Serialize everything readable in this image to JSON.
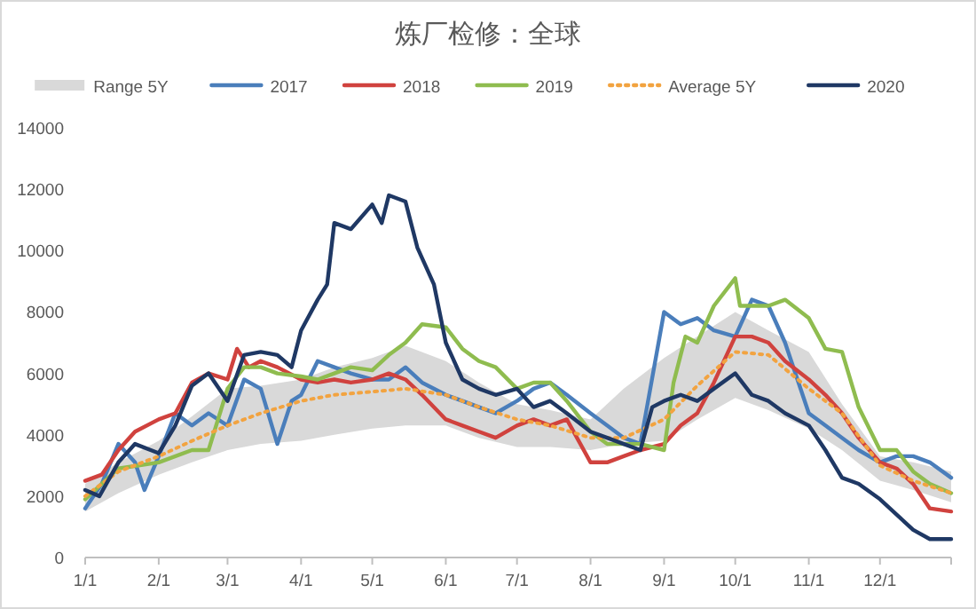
{
  "chart_data": {
    "type": "line",
    "title": "炼厂检修：全球",
    "legend": "top",
    "grid": false,
    "line_style": "solid",
    "xlim": [
      "--01-01",
      "--12-31"
    ],
    "xticks": [
      {
        "value": "--01-01",
        "label": "1/1"
      },
      {
        "value": "--02-01",
        "label": "2/1"
      },
      {
        "value": "--03-01",
        "label": "3/1"
      },
      {
        "value": "--04-01",
        "label": "4/1"
      },
      {
        "value": "--05-01",
        "label": "5/1"
      },
      {
        "value": "--06-01",
        "label": "6/1"
      },
      {
        "value": "--07-01",
        "label": "7/1"
      },
      {
        "value": "--08-01",
        "label": "8/1"
      },
      {
        "value": "--09-01",
        "label": "9/1"
      },
      {
        "value": "--10-01",
        "label": "10/1"
      },
      {
        "value": "--11-01",
        "label": "11/1"
      },
      {
        "value": "--12-01",
        "label": "12/1"
      },
      {
        "value": "--12-31",
        "label": null
      }
    ],
    "ylim": [
      0,
      14000
    ],
    "yticks": [
      0,
      2000,
      4000,
      6000,
      8000,
      10000,
      12000,
      14000
    ],
    "series": [
      {
        "name": "Range 5Y",
        "type": "area",
        "color": "#d9d9d9"
      },
      {
        "name": "2017",
        "color": "#4a7ebb",
        "x": [
          "--01-01",
          "--01-08",
          "--01-15",
          "--01-22",
          "--01-26",
          "--02-01",
          "--02-08",
          "--02-15",
          "--02-22",
          "--03-01",
          "--03-08",
          "--03-15",
          "--03-22",
          "--03-28",
          "--04-01",
          "--04-08",
          "--04-15",
          "--04-22",
          "--05-01",
          "--05-08",
          "--05-15",
          "--05-22",
          "--06-01",
          "--06-08",
          "--06-15",
          "--06-22",
          "--07-01",
          "--07-08",
          "--07-15",
          "--07-22",
          "--08-01",
          "--08-08",
          "--08-15",
          "--08-22",
          "--09-01",
          "--09-08",
          "--09-15",
          "--09-22",
          "--10-01",
          "--10-08",
          "--10-15",
          "--10-22",
          "--11-01",
          "--11-08",
          "--11-15",
          "--11-22",
          "--12-01",
          "--12-08",
          "--12-15",
          "--12-22",
          "--12-31"
        ],
        "values": [
          1600,
          2400,
          3700,
          3100,
          2200,
          3300,
          4700,
          4300,
          4700,
          4300,
          5800,
          5500,
          3700,
          5100,
          5300,
          6400,
          6200,
          6000,
          5800,
          5800,
          6200,
          5700,
          5300,
          5100,
          4900,
          4700,
          5100,
          5500,
          5700,
          5300,
          4700,
          4300,
          3900,
          3700,
          8000,
          7600,
          7800,
          7400,
          7200,
          8400,
          8200,
          7000,
          4700,
          4300,
          3900,
          3500,
          3100,
          3300,
          3300,
          3100,
          2600
        ]
      },
      {
        "name": "2018",
        "color": "#d0423e",
        "x": [
          "--01-01",
          "--01-08",
          "--01-15",
          "--01-22",
          "--02-01",
          "--02-08",
          "--02-15",
          "--02-22",
          "--03-01",
          "--03-05",
          "--03-10",
          "--03-15",
          "--03-22",
          "--04-01",
          "--04-08",
          "--04-15",
          "--04-22",
          "--05-01",
          "--05-08",
          "--05-15",
          "--05-22",
          "--06-01",
          "--06-08",
          "--06-15",
          "--06-22",
          "--07-01",
          "--07-08",
          "--07-15",
          "--07-22",
          "--08-01",
          "--08-08",
          "--08-15",
          "--08-22",
          "--09-01",
          "--09-08",
          "--09-15",
          "--09-22",
          "--10-01",
          "--10-08",
          "--10-15",
          "--10-22",
          "--11-01",
          "--11-08",
          "--11-15",
          "--11-22",
          "--12-01",
          "--12-08",
          "--12-15",
          "--12-22",
          "--12-31"
        ],
        "values": [
          2500,
          2700,
          3500,
          4100,
          4500,
          4700,
          5700,
          6000,
          5800,
          6800,
          6200,
          6400,
          6200,
          5800,
          5700,
          5800,
          5700,
          5800,
          6000,
          5800,
          5300,
          4500,
          4300,
          4100,
          3900,
          4300,
          4500,
          4300,
          4500,
          3100,
          3100,
          3300,
          3500,
          3700,
          4300,
          4700,
          5700,
          7200,
          7200,
          7000,
          6400,
          5800,
          5300,
          4700,
          3900,
          3100,
          2900,
          2400,
          1600,
          1500
        ]
      },
      {
        "name": "2019",
        "color": "#8fbc4f",
        "x": [
          "--01-01",
          "--01-15",
          "--02-01",
          "--02-15",
          "--02-22",
          "--03-01",
          "--03-08",
          "--03-15",
          "--03-22",
          "--04-01",
          "--04-08",
          "--04-15",
          "--04-22",
          "--05-01",
          "--05-08",
          "--05-15",
          "--05-22",
          "--06-01",
          "--06-08",
          "--06-15",
          "--06-22",
          "--07-01",
          "--07-08",
          "--07-15",
          "--07-22",
          "--08-01",
          "--08-08",
          "--08-15",
          "--08-22",
          "--09-01",
          "--09-05",
          "--09-10",
          "--09-15",
          "--09-22",
          "--10-01",
          "--10-03",
          "--10-08",
          "--10-15",
          "--10-22",
          "--11-01",
          "--11-08",
          "--11-15",
          "--11-22",
          "--12-01",
          "--12-08",
          "--12-15",
          "--12-22",
          "--12-31"
        ],
        "values": [
          1900,
          2900,
          3100,
          3500,
          3500,
          5500,
          6200,
          6200,
          6000,
          5900,
          5800,
          6000,
          6200,
          6100,
          6600,
          7000,
          7600,
          7500,
          6800,
          6400,
          6200,
          5500,
          5700,
          5700,
          5100,
          4100,
          3700,
          3700,
          3700,
          3500,
          5700,
          7200,
          7000,
          8200,
          9100,
          8200,
          8200,
          8200,
          8400,
          7800,
          6800,
          6700,
          4900,
          3500,
          3500,
          2800,
          2400,
          2100
        ]
      },
      {
        "name": "Average 5Y",
        "color": "#f2a340",
        "line_style": "dotted",
        "x": [
          "--01-01",
          "--01-15",
          "--02-01",
          "--02-15",
          "--03-01",
          "--03-15",
          "--04-01",
          "--04-15",
          "--05-01",
          "--05-15",
          "--06-01",
          "--06-15",
          "--07-01",
          "--07-15",
          "--08-01",
          "--08-15",
          "--09-01",
          "--09-15",
          "--10-01",
          "--10-15",
          "--11-01",
          "--11-15",
          "--12-01",
          "--12-15",
          "--12-31"
        ],
        "values": [
          2000,
          2800,
          3300,
          3800,
          4300,
          4700,
          5100,
          5300,
          5400,
          5500,
          5300,
          4900,
          4500,
          4300,
          3900,
          3900,
          4500,
          5600,
          6700,
          6600,
          5500,
          4700,
          3000,
          2500,
          2100
        ],
        "lower": [
          1500,
          2100,
          2700,
          3100,
          3500,
          3700,
          3800,
          4000,
          4200,
          4300,
          4300,
          3900,
          3600,
          3600,
          3500,
          3700,
          3800,
          4500,
          5200,
          4800,
          4200,
          3500,
          2500,
          2200,
          1800
        ],
        "upper": [
          2400,
          3100,
          3800,
          4600,
          5500,
          5600,
          5800,
          6200,
          6500,
          6900,
          6400,
          5700,
          5000,
          4800,
          4500,
          5500,
          6500,
          7200,
          8000,
          7400,
          6700,
          5000,
          3300,
          3100,
          2800
        ]
      },
      {
        "name": "2020",
        "color": "#1f3864",
        "x": [
          "--01-01",
          "--01-07",
          "--01-15",
          "--01-22",
          "--02-01",
          "--02-08",
          "--02-15",
          "--02-22",
          "--03-01",
          "--03-08",
          "--03-15",
          "--03-22",
          "--03-28",
          "--04-01",
          "--04-08",
          "--04-12",
          "--04-15",
          "--04-22",
          "--05-01",
          "--05-05",
          "--05-08",
          "--05-15",
          "--05-20",
          "--05-27",
          "--06-01",
          "--06-08",
          "--06-15",
          "--06-22",
          "--07-01",
          "--07-08",
          "--07-15",
          "--07-22",
          "--08-01",
          "--08-08",
          "--08-15",
          "--08-22",
          "--08-27",
          "--09-01",
          "--09-08",
          "--09-15",
          "--09-22",
          "--10-01",
          "--10-08",
          "--10-15",
          "--10-22",
          "--11-01",
          "--11-08",
          "--11-15",
          "--11-22",
          "--12-01",
          "--12-08",
          "--12-15",
          "--12-22",
          "--12-31"
        ],
        "values": [
          2200,
          2000,
          3100,
          3700,
          3400,
          4300,
          5600,
          6000,
          5100,
          6600,
          6700,
          6600,
          6200,
          7400,
          8400,
          8900,
          10900,
          10700,
          11500,
          10900,
          11800,
          11600,
          10100,
          8900,
          7000,
          5800,
          5500,
          5300,
          5500,
          4900,
          5100,
          4700,
          4100,
          3900,
          3700,
          3500,
          4900,
          5100,
          5300,
          5100,
          5500,
          6000,
          5300,
          5100,
          4700,
          4300,
          3500,
          2600,
          2400,
          1900,
          1400,
          900,
          600,
          600
        ]
      }
    ]
  }
}
